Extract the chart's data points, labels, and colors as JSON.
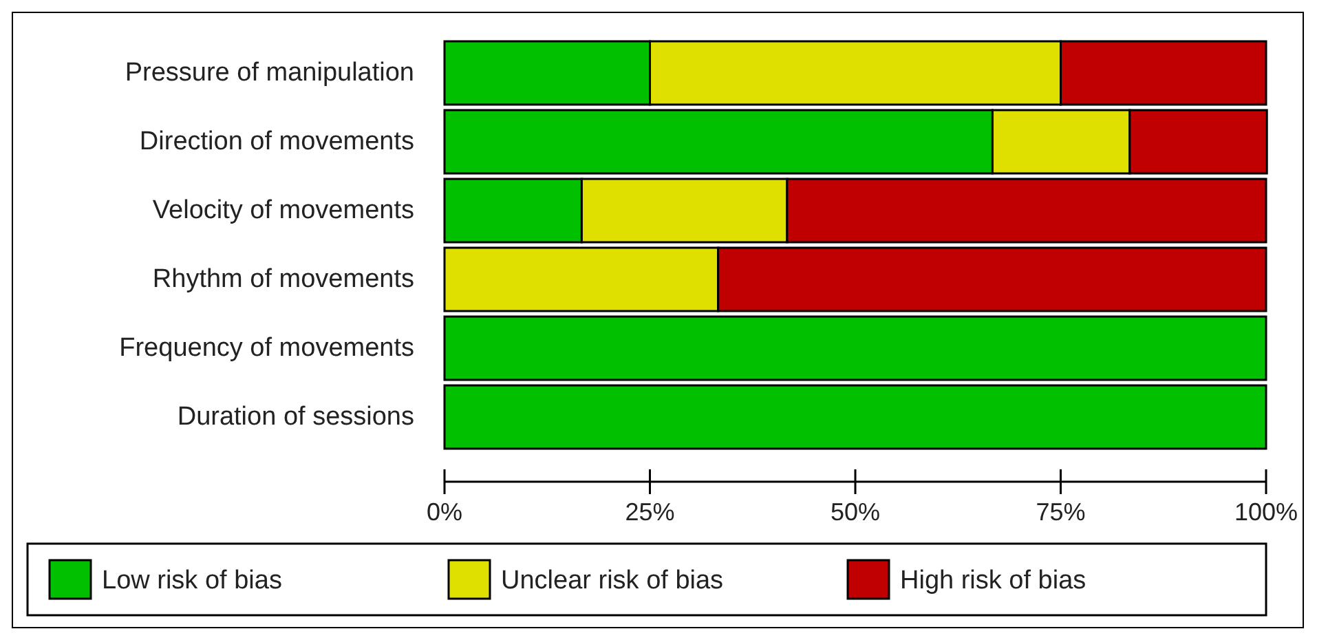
{
  "chart_data": {
    "type": "bar",
    "orientation": "horizontal",
    "stacked": true,
    "categories": [
      "Pressure of manipulation",
      "Direction of movements",
      "Velocity of movements",
      "Rhythm of movements",
      "Frequency of movements",
      "Duration of sessions"
    ],
    "series": [
      {
        "name": "Low risk of bias",
        "color": "#00c000",
        "values": [
          25,
          66.7,
          16.7,
          0,
          100,
          100
        ]
      },
      {
        "name": "Unclear risk of bias",
        "color": "#e0e000",
        "values": [
          50,
          16.7,
          25,
          33.3,
          0,
          0
        ]
      },
      {
        "name": "High risk of bias",
        "color": "#c00000",
        "values": [
          25,
          16.7,
          58.3,
          66.7,
          0,
          0
        ]
      }
    ],
    "xlim": [
      0,
      100
    ],
    "xticks": [
      {
        "value": 0,
        "label": "0%"
      },
      {
        "value": 25,
        "label": "25%"
      },
      {
        "value": 50,
        "label": "50%"
      },
      {
        "value": 75,
        "label": "75%"
      },
      {
        "value": 100,
        "label": "100%"
      }
    ],
    "grid": false,
    "legend": "bottom"
  }
}
